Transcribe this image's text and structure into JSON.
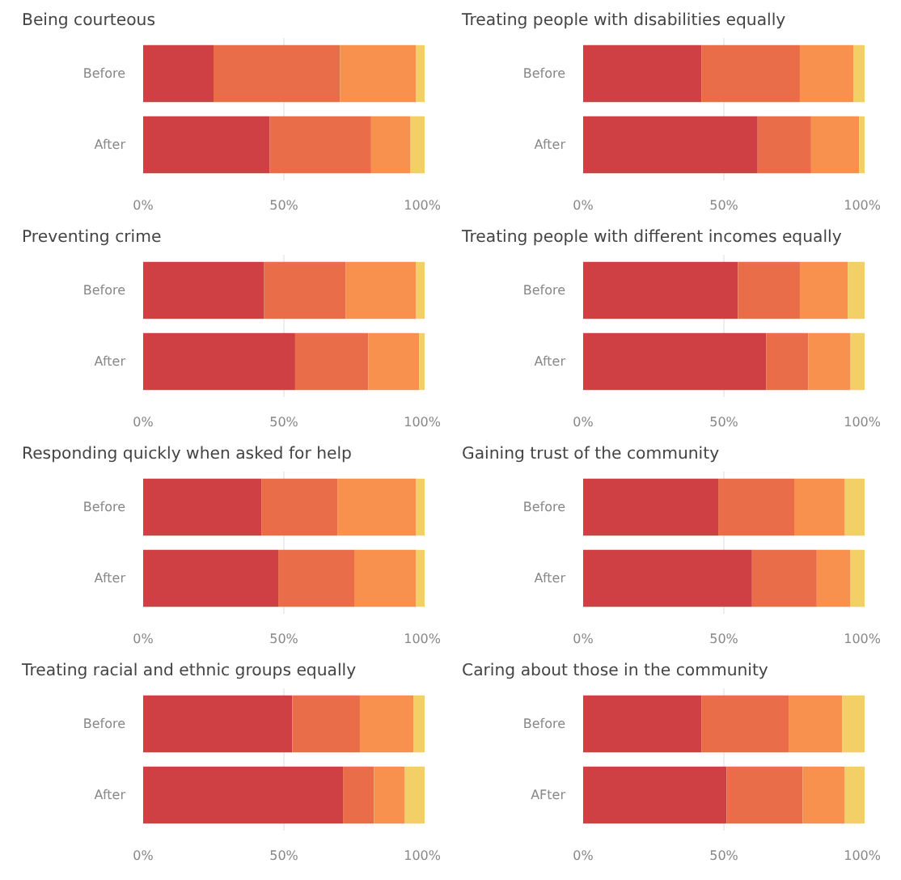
{
  "chart_data": [
    {
      "type": "bar",
      "orientation": "horizontal",
      "stacked": true,
      "title": "Being courteous",
      "categories": [
        "Before",
        "After"
      ],
      "xlim": [
        0,
        100
      ],
      "xticks": [
        {
          "value": 0,
          "label": "0%"
        },
        {
          "value": 50,
          "label": "50%"
        },
        {
          "value": 100,
          "label": "100%"
        }
      ],
      "grid": "x",
      "series": [
        {
          "color": "#cf4044",
          "values": [
            25,
            45
          ]
        },
        {
          "color": "#e96d49",
          "values": [
            45,
            36
          ]
        },
        {
          "color": "#f8914e",
          "values": [
            27,
            14
          ]
        },
        {
          "color": "#f3cf68",
          "values": [
            3,
            5
          ]
        }
      ]
    },
    {
      "type": "bar",
      "orientation": "horizontal",
      "stacked": true,
      "title": "Treating people with disabilities equally",
      "categories": [
        "Before",
        "After"
      ],
      "xlim": [
        0,
        100
      ],
      "xticks": [
        {
          "value": 0,
          "label": "0%"
        },
        {
          "value": 50,
          "label": "50%"
        },
        {
          "value": 100,
          "label": "100%"
        }
      ],
      "grid": "x",
      "series": [
        {
          "color": "#cf4044",
          "values": [
            42,
            62
          ]
        },
        {
          "color": "#e96d49",
          "values": [
            35,
            19
          ]
        },
        {
          "color": "#f8914e",
          "values": [
            19,
            17
          ]
        },
        {
          "color": "#f3cf68",
          "values": [
            4,
            2
          ]
        }
      ]
    },
    {
      "type": "bar",
      "orientation": "horizontal",
      "stacked": true,
      "title": "Preventing crime",
      "categories": [
        "Before",
        "After"
      ],
      "xlim": [
        0,
        100
      ],
      "xticks": [
        {
          "value": 0,
          "label": "0%"
        },
        {
          "value": 50,
          "label": "50%"
        },
        {
          "value": 100,
          "label": "100%"
        }
      ],
      "grid": "x",
      "series": [
        {
          "color": "#cf4044",
          "values": [
            43,
            54
          ]
        },
        {
          "color": "#e96d49",
          "values": [
            29,
            26
          ]
        },
        {
          "color": "#f8914e",
          "values": [
            25,
            18
          ]
        },
        {
          "color": "#f3cf68",
          "values": [
            3,
            2
          ]
        }
      ]
    },
    {
      "type": "bar",
      "orientation": "horizontal",
      "stacked": true,
      "title": "Treating people with different incomes equally",
      "categories": [
        "Before",
        "After"
      ],
      "xlim": [
        0,
        100
      ],
      "xticks": [
        {
          "value": 0,
          "label": "0%"
        },
        {
          "value": 50,
          "label": "50%"
        },
        {
          "value": 100,
          "label": "100%"
        }
      ],
      "grid": "x",
      "series": [
        {
          "color": "#cf4044",
          "values": [
            55,
            65
          ]
        },
        {
          "color": "#e96d49",
          "values": [
            22,
            15
          ]
        },
        {
          "color": "#f8914e",
          "values": [
            17,
            15
          ]
        },
        {
          "color": "#f3cf68",
          "values": [
            6,
            5
          ]
        }
      ]
    },
    {
      "type": "bar",
      "orientation": "horizontal",
      "stacked": true,
      "title": "Responding quickly when asked for help",
      "categories": [
        "Before",
        "After"
      ],
      "xlim": [
        0,
        100
      ],
      "xticks": [
        {
          "value": 0,
          "label": "0%"
        },
        {
          "value": 50,
          "label": "50%"
        },
        {
          "value": 100,
          "label": "100%"
        }
      ],
      "grid": "x",
      "series": [
        {
          "color": "#cf4044",
          "values": [
            42,
            48
          ]
        },
        {
          "color": "#e96d49",
          "values": [
            27,
            27
          ]
        },
        {
          "color": "#f8914e",
          "values": [
            28,
            22
          ]
        },
        {
          "color": "#f3cf68",
          "values": [
            3,
            3
          ]
        }
      ]
    },
    {
      "type": "bar",
      "orientation": "horizontal",
      "stacked": true,
      "title": "Gaining trust of the community",
      "categories": [
        "Before",
        "After"
      ],
      "xlim": [
        0,
        100
      ],
      "xticks": [
        {
          "value": 0,
          "label": "0%"
        },
        {
          "value": 50,
          "label": "50%"
        },
        {
          "value": 100,
          "label": "100%"
        }
      ],
      "grid": "x",
      "series": [
        {
          "color": "#cf4044",
          "values": [
            48,
            60
          ]
        },
        {
          "color": "#e96d49",
          "values": [
            27,
            23
          ]
        },
        {
          "color": "#f8914e",
          "values": [
            18,
            12
          ]
        },
        {
          "color": "#f3cf68",
          "values": [
            7,
            5
          ]
        }
      ]
    },
    {
      "type": "bar",
      "orientation": "horizontal",
      "stacked": true,
      "title": "Treating racial and ethnic groups equally",
      "categories": [
        "Before",
        "After"
      ],
      "xlim": [
        0,
        100
      ],
      "xticks": [
        {
          "value": 0,
          "label": "0%"
        },
        {
          "value": 50,
          "label": "50%"
        },
        {
          "value": 100,
          "label": "100%"
        }
      ],
      "grid": "x",
      "series": [
        {
          "color": "#cf4044",
          "values": [
            53,
            71
          ]
        },
        {
          "color": "#e96d49",
          "values": [
            24,
            11
          ]
        },
        {
          "color": "#f8914e",
          "values": [
            19,
            11
          ]
        },
        {
          "color": "#f3cf68",
          "values": [
            4,
            7
          ]
        }
      ]
    },
    {
      "type": "bar",
      "orientation": "horizontal",
      "stacked": true,
      "title": "Caring about those in the community",
      "categories": [
        "Before",
        "AFter"
      ],
      "xlim": [
        0,
        100
      ],
      "xticks": [
        {
          "value": 0,
          "label": "0%"
        },
        {
          "value": 50,
          "label": "50%"
        },
        {
          "value": 100,
          "label": "100%"
        }
      ],
      "grid": "x",
      "series": [
        {
          "color": "#cf4044",
          "values": [
            42,
            51
          ]
        },
        {
          "color": "#e96d49",
          "values": [
            31,
            27
          ]
        },
        {
          "color": "#f8914e",
          "values": [
            19,
            15
          ]
        },
        {
          "color": "#f3cf68",
          "values": [
            8,
            7
          ]
        }
      ]
    }
  ]
}
